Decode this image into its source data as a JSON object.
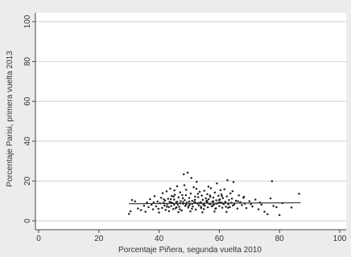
{
  "chart_data": {
    "type": "scatter",
    "title": "",
    "xlabel": "Porcentaje Piñera, segunda vuelta 2010",
    "ylabel": "Porcentaje Parisi, primera vuelta 2013",
    "xlim": [
      0,
      100
    ],
    "ylim": [
      0,
      100
    ],
    "xticks": [
      0,
      20,
      40,
      60,
      80,
      100
    ],
    "yticks": [
      0,
      20,
      40,
      60,
      80,
      100
    ],
    "grid": "horizontal",
    "colors": {
      "background": "#ececec",
      "plot_area": "#ffffff",
      "marker": "#222222",
      "line": "#333333",
      "grid": "#d0d0d0"
    },
    "fit_line": {
      "x": [
        30,
        87
      ],
      "y": [
        8.6,
        9.1
      ]
    },
    "points": [
      [
        30,
        3.5
      ],
      [
        30.5,
        4.8
      ],
      [
        31,
        10.5
      ],
      [
        32,
        9.8
      ],
      [
        33,
        6.2
      ],
      [
        34,
        5.4
      ],
      [
        35,
        7.6
      ],
      [
        35.5,
        4.6
      ],
      [
        36,
        9.2
      ],
      [
        36.5,
        6.9
      ],
      [
        37,
        10.9
      ],
      [
        37.5,
        8.1
      ],
      [
        38,
        5.8
      ],
      [
        38.5,
        12.4
      ],
      [
        39,
        7.3
      ],
      [
        39.5,
        9.7
      ],
      [
        40,
        4.2
      ],
      [
        40.3,
        8.8
      ],
      [
        40.7,
        11.6
      ],
      [
        41,
        6.5
      ],
      [
        41.2,
        13.9
      ],
      [
        41.5,
        9.1
      ],
      [
        41.8,
        7.7
      ],
      [
        42,
        10.2
      ],
      [
        42.2,
        5.5
      ],
      [
        42.5,
        14.8
      ],
      [
        42.7,
        8.4
      ],
      [
        43,
        11.1
      ],
      [
        43.2,
        6.9
      ],
      [
        43.5,
        9.6
      ],
      [
        43.7,
        16.2
      ],
      [
        44,
        7.4
      ],
      [
        44.2,
        12.5
      ],
      [
        44.5,
        8.9
      ],
      [
        44.7,
        5.9
      ],
      [
        45,
        10.7
      ],
      [
        45.2,
        13.1
      ],
      [
        45.5,
        6.3
      ],
      [
        45.7,
        9.4
      ],
      [
        46,
        17.4
      ],
      [
        46.2,
        8.2
      ],
      [
        46.5,
        11.8
      ],
      [
        46.7,
        7.1
      ],
      [
        47,
        14.3
      ],
      [
        47.2,
        9.9
      ],
      [
        47.5,
        5.2
      ],
      [
        47.7,
        12.9
      ],
      [
        48,
        8.6
      ],
      [
        48.2,
        23.4
      ],
      [
        48.5,
        10.4
      ],
      [
        48.7,
        7.5
      ],
      [
        49,
        15.6
      ],
      [
        49.2,
        9.1
      ],
      [
        49.5,
        24.2
      ],
      [
        49.7,
        6.7
      ],
      [
        50,
        11.5
      ],
      [
        50.2,
        8.3
      ],
      [
        50.5,
        13.7
      ],
      [
        50.7,
        21.5
      ],
      [
        51,
        10.1
      ],
      [
        51.2,
        7.2
      ],
      [
        51.5,
        16.9
      ],
      [
        51.7,
        9.5
      ],
      [
        52,
        12.2
      ],
      [
        52.2,
        5.7
      ],
      [
        52.5,
        19.6
      ],
      [
        52.7,
        8.7
      ],
      [
        53,
        11.9
      ],
      [
        53.2,
        7.8
      ],
      [
        53.5,
        14.6
      ],
      [
        53.7,
        9.3
      ],
      [
        54,
        6.4
      ],
      [
        54.2,
        12.7
      ],
      [
        54.5,
        10.6
      ],
      [
        54.7,
        8.1
      ],
      [
        55,
        15.1
      ],
      [
        55.2,
        7.6
      ],
      [
        55.5,
        11.3
      ],
      [
        55.7,
        9.8
      ],
      [
        56,
        13.4
      ],
      [
        56.2,
        6.8
      ],
      [
        56.5,
        10.9
      ],
      [
        56.7,
        8.5
      ],
      [
        57,
        12.1
      ],
      [
        57.2,
        16.4
      ],
      [
        57.5,
        7.3
      ],
      [
        57.7,
        9.7
      ],
      [
        58,
        11.7
      ],
      [
        58.2,
        8.2
      ],
      [
        58.5,
        14.2
      ],
      [
        58.7,
        6.1
      ],
      [
        59,
        10.3
      ],
      [
        59.2,
        18.8
      ],
      [
        59.5,
        8.9
      ],
      [
        59.7,
        12.6
      ],
      [
        60,
        7.4
      ],
      [
        60.2,
        10.8
      ],
      [
        60.5,
        9.2
      ],
      [
        60.7,
        13.3
      ],
      [
        61,
        6.6
      ],
      [
        61.2,
        11.4
      ],
      [
        61.5,
        8.4
      ],
      [
        61.7,
        15.9
      ],
      [
        62,
        9.6
      ],
      [
        62.2,
        7.1
      ],
      [
        62.5,
        12.3
      ],
      [
        62.7,
        20.4
      ],
      [
        63,
        8.8
      ],
      [
        63.2,
        10.5
      ],
      [
        63.5,
        6.9
      ],
      [
        63.7,
        13.8
      ],
      [
        64,
        9.1
      ],
      [
        64.2,
        11.2
      ],
      [
        64.5,
        7.7
      ],
      [
        64.7,
        19.5
      ],
      [
        65,
        8.3
      ],
      [
        65.5,
        10.1
      ],
      [
        66,
        6.2
      ],
      [
        66.5,
        12.8
      ],
      [
        67,
        9.4
      ],
      [
        67.5,
        7.9
      ],
      [
        68,
        11.6
      ],
      [
        68.5,
        8.6
      ],
      [
        69,
        6.4
      ],
      [
        70,
        9.9
      ],
      [
        71,
        7.2
      ],
      [
        72,
        10.7
      ],
      [
        73,
        5.8
      ],
      [
        74,
        8.1
      ],
      [
        75,
        4.6
      ],
      [
        76,
        3.4
      ],
      [
        77,
        11.3
      ],
      [
        77.5,
        19.9
      ],
      [
        78,
        7.5
      ],
      [
        80,
        2.9
      ],
      [
        81,
        8.9
      ],
      [
        84,
        6.7
      ],
      [
        86.5,
        13.6
      ],
      [
        44,
        9.2
      ],
      [
        45,
        8.1
      ],
      [
        46,
        9.6
      ],
      [
        47,
        8.8
      ],
      [
        48,
        9.4
      ],
      [
        49,
        8.2
      ],
      [
        50,
        9.7
      ],
      [
        51,
        8.5
      ],
      [
        52,
        9.3
      ],
      [
        53,
        8.9
      ],
      [
        54,
        9.1
      ],
      [
        55,
        8.7
      ],
      [
        56,
        9.5
      ],
      [
        57,
        8.4
      ],
      [
        58,
        9.8
      ],
      [
        59,
        8.6
      ],
      [
        60,
        9.2
      ],
      [
        61,
        8.9
      ],
      [
        62,
        9.4
      ],
      [
        63,
        8.3
      ],
      [
        42.6,
        7.2
      ],
      [
        43.9,
        10.9
      ],
      [
        45.8,
        6.8
      ],
      [
        47.9,
        11.4
      ],
      [
        49.9,
        7.6
      ],
      [
        51.9,
        10.6
      ],
      [
        53.9,
        7.1
      ],
      [
        55.9,
        10.2
      ],
      [
        57.9,
        7.8
      ],
      [
        59.9,
        10.4
      ],
      [
        44.8,
        12.2
      ],
      [
        46.9,
        5.8
      ],
      [
        48.9,
        12.9
      ],
      [
        50.9,
        6.1
      ],
      [
        52.9,
        13.6
      ],
      [
        54.9,
        5.9
      ],
      [
        56.9,
        12.7
      ],
      [
        58.9,
        6.3
      ],
      [
        60.9,
        12.4
      ],
      [
        62.9,
        6.6
      ],
      [
        38.2,
        9.3
      ],
      [
        39.8,
        6.1
      ],
      [
        41.6,
        10.8
      ],
      [
        43.3,
        4.9
      ],
      [
        45.1,
        15.3
      ],
      [
        46.4,
        4.4
      ],
      [
        48.4,
        17.9
      ],
      [
        50.4,
        4.8
      ],
      [
        52.4,
        16.1
      ],
      [
        54.4,
        4.3
      ],
      [
        56.4,
        17.2
      ],
      [
        58.4,
        4.7
      ],
      [
        60.4,
        15.4
      ],
      [
        62.4,
        4.5
      ],
      [
        64.4,
        14.9
      ],
      [
        66.2,
        9.9
      ],
      [
        68.2,
        12.1
      ],
      [
        70.5,
        8.4
      ],
      [
        73.5,
        9.2
      ],
      [
        79,
        6.9
      ]
    ]
  }
}
